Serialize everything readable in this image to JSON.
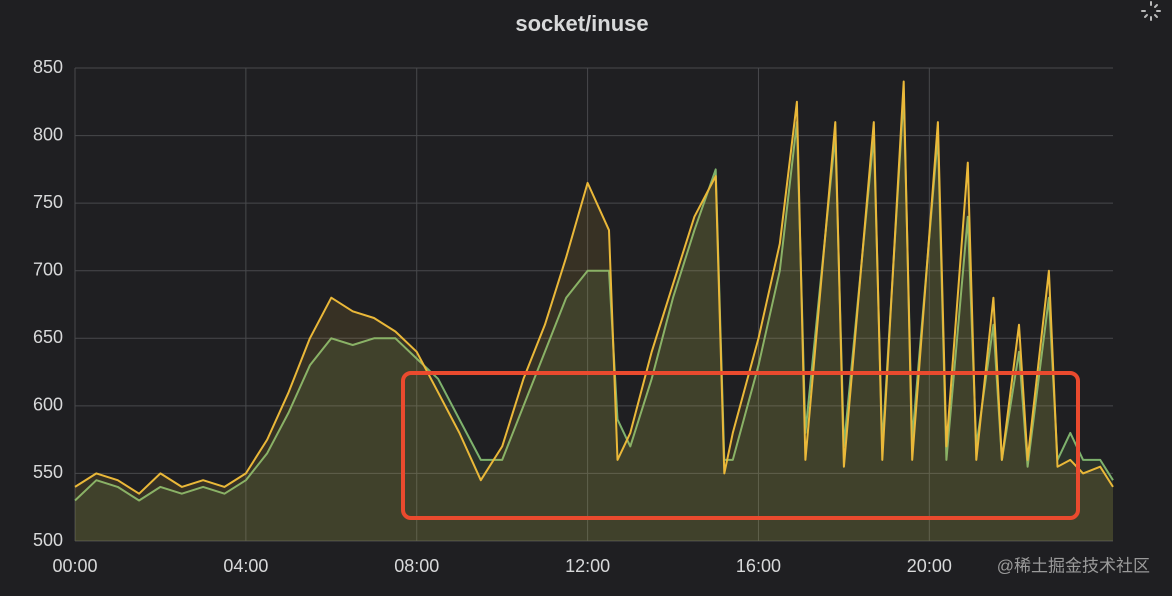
{
  "chart_data": {
    "type": "line",
    "title": "socket/inuse",
    "x": [
      0,
      0.5,
      1,
      1.5,
      2,
      2.5,
      3,
      3.5,
      4,
      4.5,
      5,
      5.5,
      6,
      6.5,
      7,
      7.5,
      8,
      8.5,
      9,
      9.5,
      10,
      10.5,
      11,
      11.5,
      12,
      12.5,
      12.7,
      13,
      13.5,
      14,
      14.5,
      15,
      15.2,
      15.4,
      16,
      16.5,
      16.9,
      17.1,
      17.8,
      18.0,
      18.7,
      18.9,
      19.4,
      19.6,
      20.2,
      20.4,
      20.9,
      21.1,
      21.5,
      21.7,
      22.1,
      22.3,
      22.8,
      23.0,
      23.3,
      23.6,
      24,
      24.3
    ],
    "series": [
      {
        "color": "#7eb26d",
        "values": [
          530,
          545,
          540,
          530,
          540,
          535,
          540,
          535,
          545,
          565,
          595,
          630,
          650,
          645,
          650,
          650,
          635,
          620,
          590,
          560,
          560,
          600,
          640,
          680,
          700,
          700,
          590,
          570,
          620,
          680,
          730,
          775,
          560,
          560,
          630,
          700,
          810,
          580,
          800,
          570,
          800,
          570,
          830,
          575,
          800,
          560,
          740,
          570,
          660,
          560,
          640,
          555,
          680,
          560,
          580,
          560,
          560,
          545
        ]
      },
      {
        "color": "#eab839",
        "values": [
          540,
          550,
          545,
          535,
          550,
          540,
          545,
          540,
          550,
          575,
          610,
          650,
          680,
          670,
          665,
          655,
          640,
          610,
          580,
          545,
          570,
          620,
          660,
          710,
          765,
          730,
          560,
          580,
          640,
          690,
          740,
          770,
          550,
          580,
          650,
          720,
          825,
          560,
          810,
          555,
          810,
          560,
          840,
          560,
          810,
          570,
          780,
          560,
          680,
          560,
          660,
          560,
          700,
          555,
          560,
          550,
          555,
          540
        ]
      }
    ],
    "xlim": [
      0,
      24.3
    ],
    "xticks": [
      {
        "value": 0,
        "label": "00:00"
      },
      {
        "value": 4,
        "label": "04:00"
      },
      {
        "value": 8,
        "label": "08:00"
      },
      {
        "value": 12,
        "label": "12:00"
      },
      {
        "value": 16,
        "label": "16:00"
      },
      {
        "value": 20,
        "label": "20:00"
      }
    ],
    "ylim": [
      500,
      850
    ],
    "yticks": [
      500,
      550,
      600,
      650,
      700,
      750,
      800,
      850
    ],
    "grid": true,
    "fill": true,
    "watermark": "@稀土掘金技术社区"
  }
}
